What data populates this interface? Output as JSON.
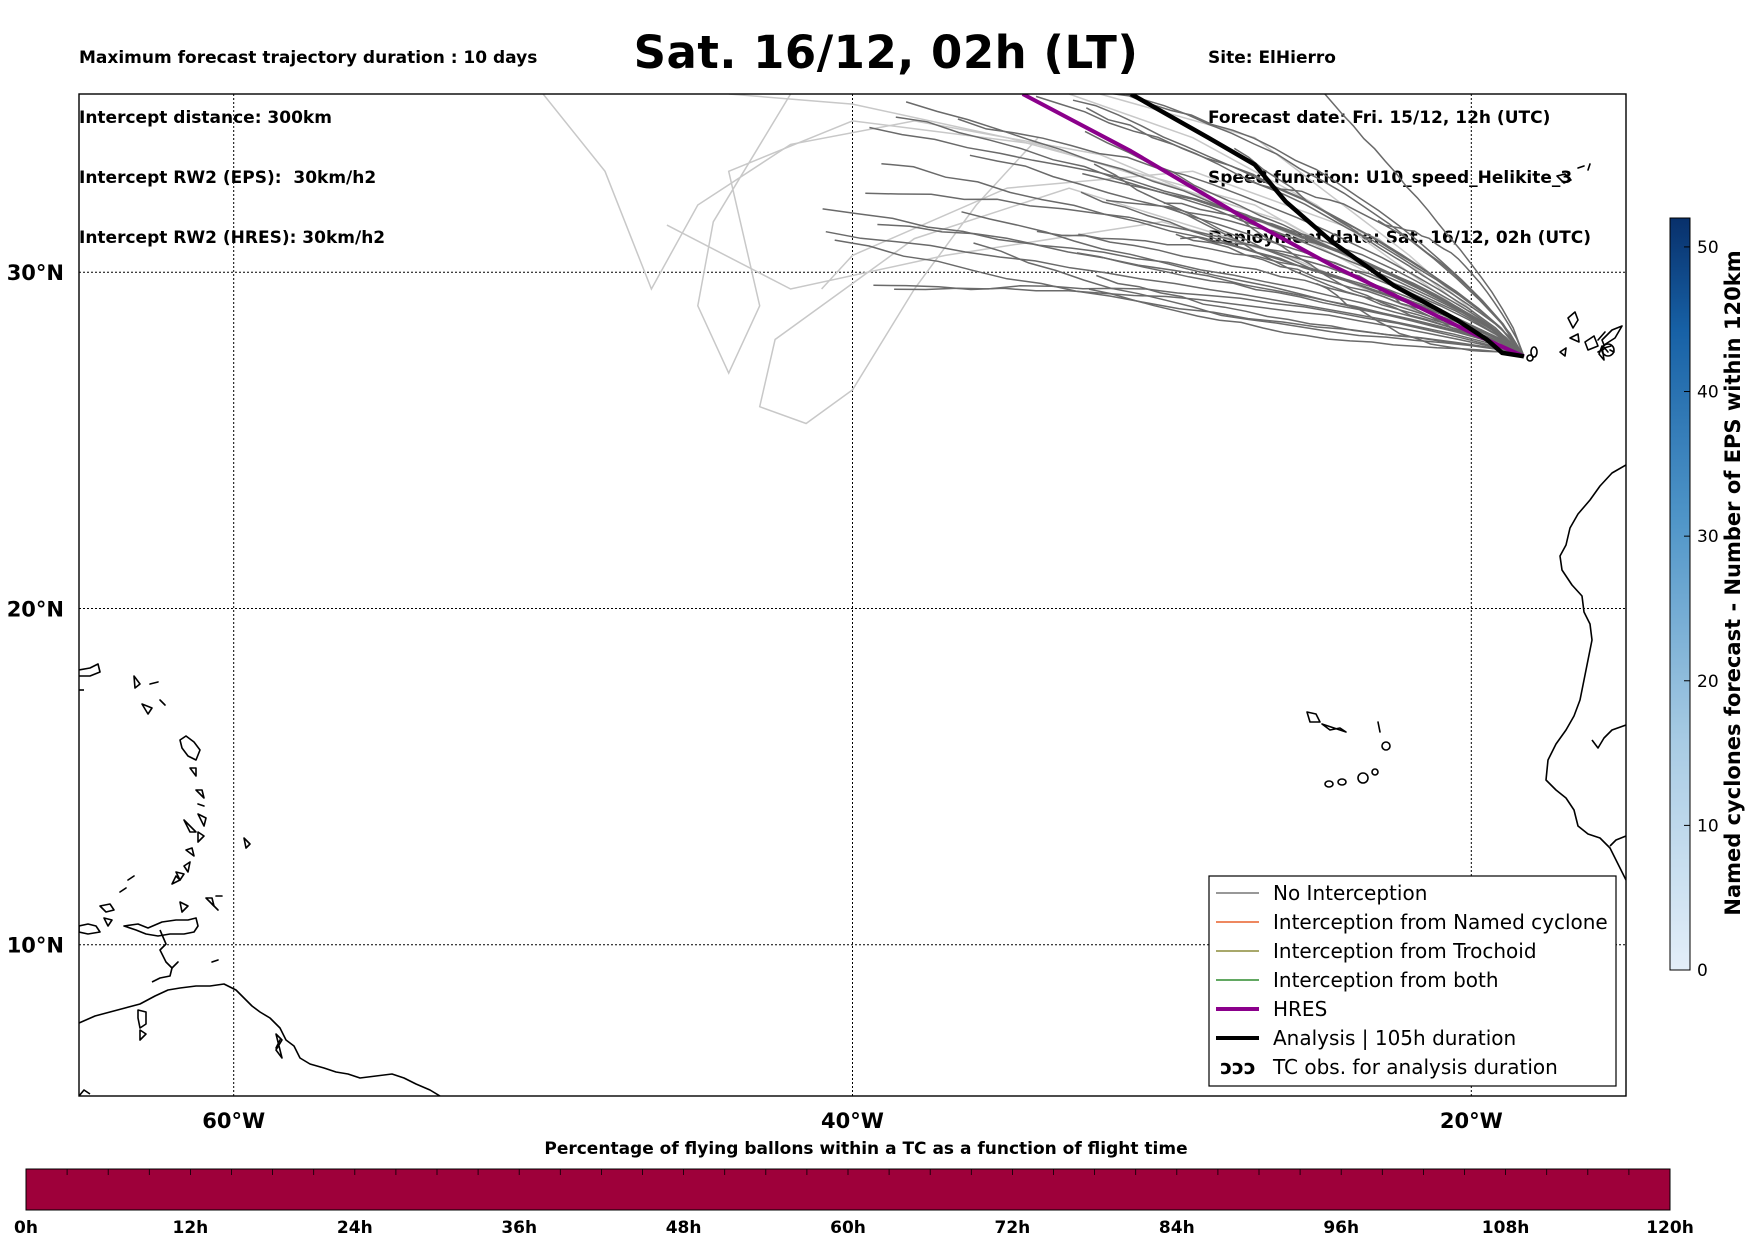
{
  "header": {
    "left_lines": [
      "Maximum forecast trajectory duration : 10 days",
      "Intercept distance: 300km",
      "Intercept RW2 (EPS):  30km/h2",
      "Intercept RW2 (HRES): 30km/h2"
    ],
    "title": "Sat. 16/12, 02h (LT)",
    "right_lines": [
      "Site: ElHierro",
      "Forecast date: Fri. 15/12, 12h (UTC)",
      "Speed function: U10_speed_Helikite_3",
      "Deployment date: Sat. 16/12, 02h (UTC)"
    ]
  },
  "map": {
    "lat_labels": [
      "30°N",
      "20°N",
      "10°N"
    ],
    "lon_labels": [
      "60°W",
      "40°W",
      "20°W"
    ],
    "lat_values": [
      30,
      20,
      10
    ],
    "lon_values": [
      -60,
      -40,
      -20
    ],
    "extent": {
      "lon_min": -65,
      "lon_max": -15,
      "lat_min": 5.5,
      "lat_max": 35.3
    },
    "site": {
      "name": "ElHierro",
      "lon": -18.3,
      "lat": 27.5
    }
  },
  "legend": {
    "entries": [
      {
        "label": "No Interception",
        "color": "#777777",
        "style": "thin"
      },
      {
        "label": "Interception from Named cyclone",
        "color": "#e8602c",
        "style": "thin"
      },
      {
        "label": "Interception from Trochoid",
        "color": "#8b8b3a",
        "style": "thin"
      },
      {
        "label": "Interception from both",
        "color": "#2e8b2e",
        "style": "thin"
      },
      {
        "label": "HRES",
        "color": "#8b008b",
        "style": "thick"
      },
      {
        "label": "Analysis | 105h duration",
        "color": "#000000",
        "style": "thick"
      },
      {
        "label": "TC obs. for analysis duration",
        "color": "#000000",
        "style": "symbol"
      }
    ],
    "symbol_glyph": "ↄↄↄ"
  },
  "colorbar": {
    "label": "Named cyclones forecast - Number of EPS within 120km",
    "ticks": [
      "0",
      "10",
      "20",
      "30",
      "40",
      "50"
    ],
    "tick_values": [
      0,
      10,
      20,
      30,
      40,
      50
    ],
    "max": 52,
    "color_low": "#e3eef9",
    "color_high": "#08306b"
  },
  "percentage_bar": {
    "title": "Percentage of flying ballons within a TC as a function of flight time",
    "ticks": [
      "0h",
      "12h",
      "24h",
      "36h",
      "48h",
      "60h",
      "72h",
      "84h",
      "96h",
      "108h",
      "120h"
    ],
    "fill_color": "#9e003a",
    "percentage_values": [
      0,
      0,
      0,
      0,
      0,
      0,
      0,
      0,
      0,
      0,
      0,
      0,
      0,
      0,
      0,
      0,
      0,
      0,
      0,
      0,
      0,
      0,
      0,
      0,
      0,
      0,
      0,
      0,
      0,
      0,
      0,
      0,
      0,
      0,
      0,
      0,
      0,
      0,
      0,
      0
    ]
  },
  "trajectories": {
    "hres": {
      "color": "#8b008b",
      "lon": [
        -18.3,
        -18.8,
        -20.0,
        -22.0,
        -24.5,
        -27.5,
        -31.0,
        -34.5
      ],
      "lat": [
        27.5,
        27.7,
        28.2,
        29.1,
        30.2,
        31.7,
        33.6,
        35.3
      ]
    },
    "analysis": {
      "color": "#000000",
      "lon": [
        -18.3,
        -19.0,
        -19.5,
        -20.5,
        -22.5,
        -24.5,
        -26.0,
        -27.0,
        -28.5,
        -31.0
      ],
      "lat": [
        27.5,
        27.6,
        28.0,
        28.6,
        29.6,
        30.9,
        32.1,
        33.2,
        34.0,
        35.3
      ]
    }
  }
}
